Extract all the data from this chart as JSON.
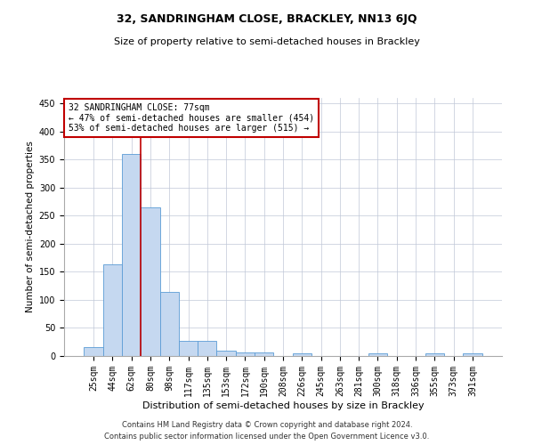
{
  "title": "32, SANDRINGHAM CLOSE, BRACKLEY, NN13 6JQ",
  "subtitle": "Size of property relative to semi-detached houses in Brackley",
  "xlabel": "Distribution of semi-detached houses by size in Brackley",
  "ylabel": "Number of semi-detached properties",
  "footnote1": "Contains HM Land Registry data © Crown copyright and database right 2024.",
  "footnote2": "Contains public sector information licensed under the Open Government Licence v3.0.",
  "annotation_line1": "32 SANDRINGHAM CLOSE: 77sqm",
  "annotation_line2": "← 47% of semi-detached houses are smaller (454)",
  "annotation_line3": "53% of semi-detached houses are larger (515) →",
  "categories": [
    "25sqm",
    "44sqm",
    "62sqm",
    "80sqm",
    "98sqm",
    "117sqm",
    "135sqm",
    "153sqm",
    "172sqm",
    "190sqm",
    "208sqm",
    "226sqm",
    "245sqm",
    "263sqm",
    "281sqm",
    "300sqm",
    "318sqm",
    "336sqm",
    "355sqm",
    "373sqm",
    "391sqm"
  ],
  "values": [
    16,
    163,
    360,
    265,
    114,
    27,
    27,
    9,
    7,
    6,
    0,
    4,
    0,
    0,
    0,
    4,
    0,
    0,
    4,
    0,
    4
  ],
  "bar_color": "#c5d8f0",
  "bar_edge_color": "#5b9bd5",
  "vline_color": "#c00000",
  "vline_x": 2.5,
  "ylim": [
    0,
    460
  ],
  "yticks": [
    0,
    50,
    100,
    150,
    200,
    250,
    300,
    350,
    400,
    450
  ],
  "annotation_box_color": "#c00000",
  "background_color": "#ffffff",
  "grid_color": "#c0c8d8",
  "title_fontsize": 9,
  "subtitle_fontsize": 8,
  "ylabel_fontsize": 7.5,
  "xlabel_fontsize": 8,
  "tick_fontsize": 7,
  "annotation_fontsize": 7,
  "footnote_fontsize": 6
}
